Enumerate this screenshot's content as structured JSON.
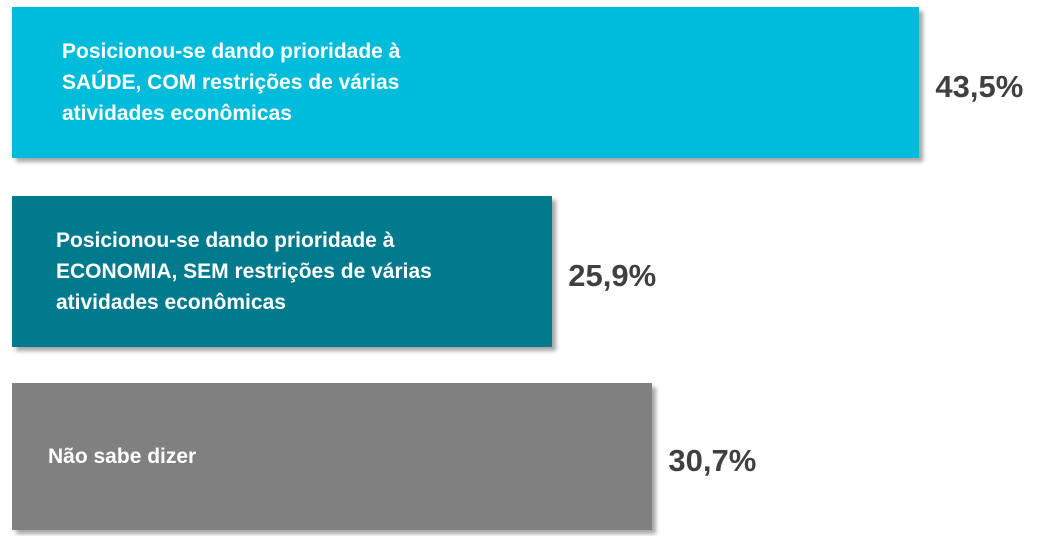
{
  "chart_data": {
    "type": "bar",
    "orientation": "horizontal",
    "categories": [
      "Posicionou-se dando prioridade à SAÚDE, COM restrições de várias atividades econômicas",
      "Posicionou-se dando prioridade à ECONOMIA, SEM restrições de várias atividades econômicas",
      "Não sabe dizer"
    ],
    "values": [
      43.5,
      25.9,
      30.7
    ],
    "value_labels": [
      "43,5%",
      "25,9%",
      "30,7%"
    ],
    "colors": [
      "#00bcdb",
      "#007a8c",
      "#808080"
    ]
  }
}
